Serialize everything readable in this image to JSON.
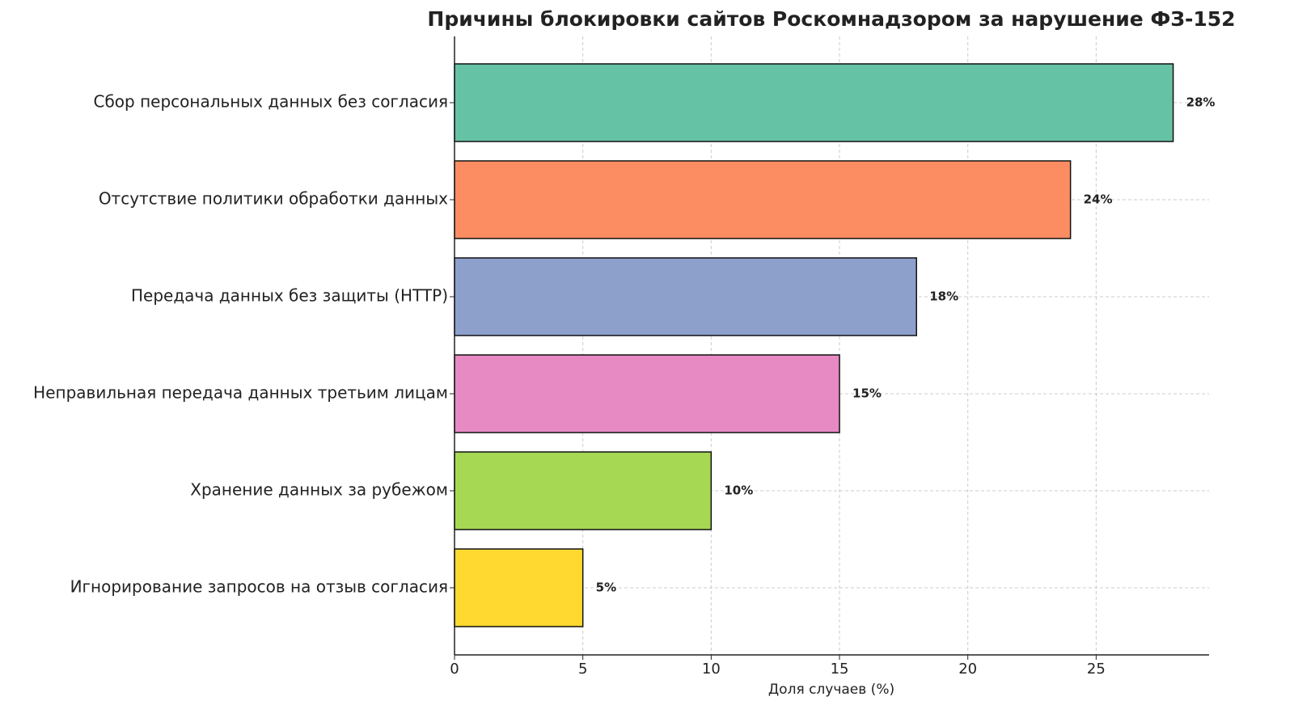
{
  "chart_data": {
    "type": "bar",
    "orientation": "horizontal",
    "title": "Причины блокировки сайтов Роскомнадзором за нарушение ФЗ-152",
    "xlabel": "Доля случаев (%)",
    "categories": [
      "Сбор персональных данных без согласия",
      "Отсутствие политики обработки данных",
      "Передача данных без защиты (HTTP)",
      "Неправильная передача данных третьим лицам",
      "Хранение данных за рубежом",
      "Игнорирование запросов на отзыв согласия"
    ],
    "values": [
      28,
      24,
      18,
      15,
      10,
      5
    ],
    "value_labels": [
      "28%",
      "24%",
      "18%",
      "15%",
      "10%",
      "5%"
    ],
    "colors": [
      "#66c2a5",
      "#fc8d62",
      "#8da0cb",
      "#e78ac3",
      "#a6d854",
      "#ffd92f"
    ],
    "xlim": [
      0,
      29.4
    ],
    "xticks": [
      0,
      5,
      10,
      15,
      20,
      25
    ],
    "grid": true
  }
}
